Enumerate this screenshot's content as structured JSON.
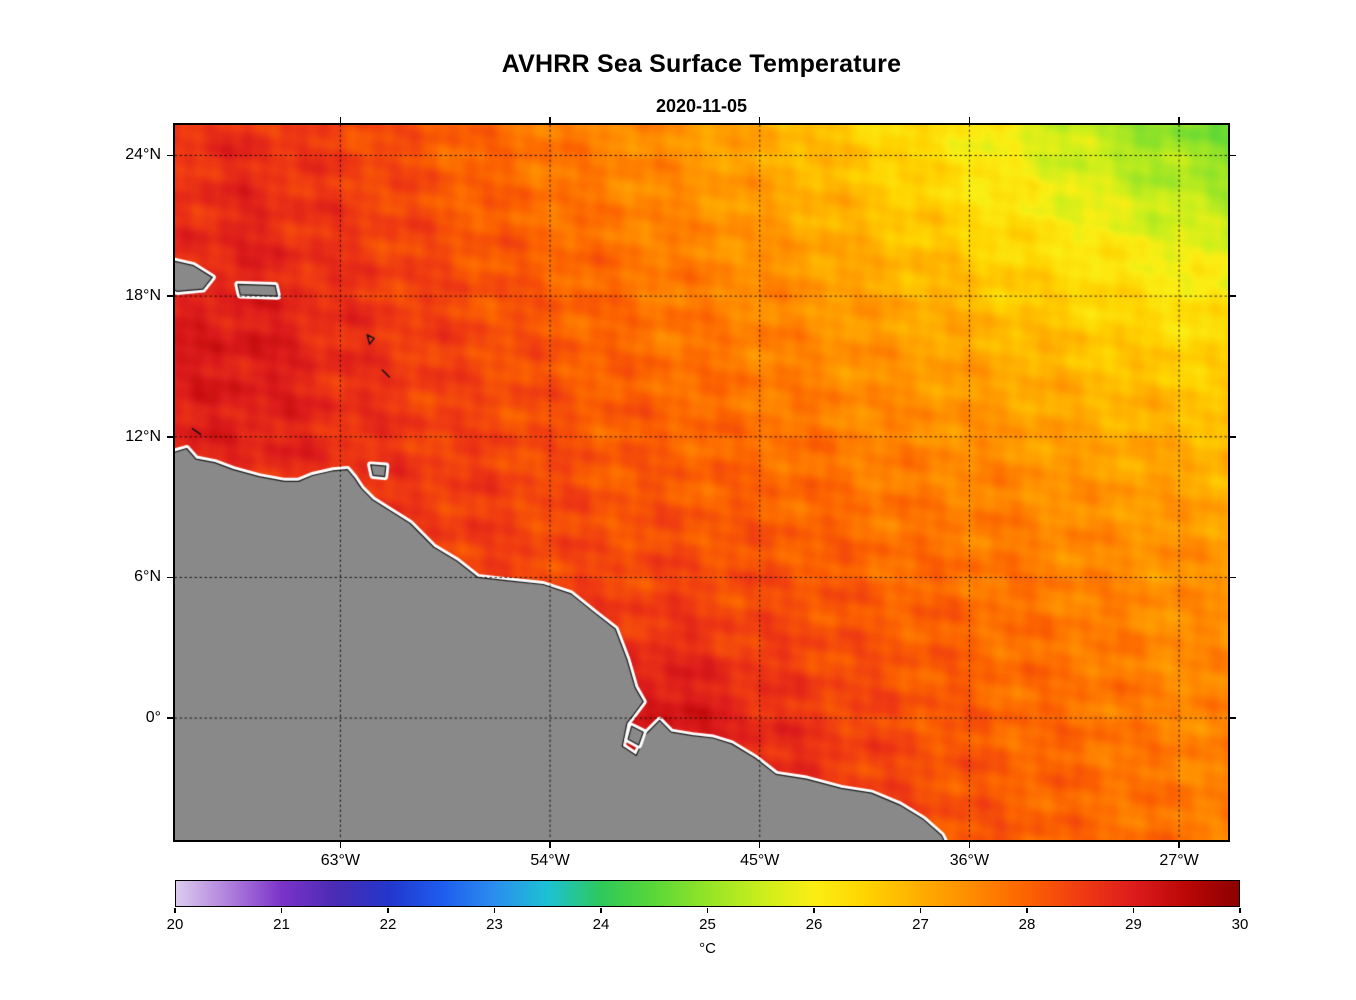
{
  "chart_data": {
    "type": "heatmap",
    "title": "AVHRR Sea Surface Temperature",
    "subtitle": "2020-11-05",
    "grid": "dotted",
    "lon_range": [
      -70.1,
      -24.9
    ],
    "lat_range": [
      -5.2,
      25.3
    ],
    "x_ticks": [
      {
        "value": -63,
        "label": "63°W"
      },
      {
        "value": -54,
        "label": "54°W"
      },
      {
        "value": -45,
        "label": "45°W"
      },
      {
        "value": -36,
        "label": "36°W"
      },
      {
        "value": -27,
        "label": "27°W"
      }
    ],
    "y_ticks": [
      {
        "value": 24,
        "label": "24°N"
      },
      {
        "value": 18,
        "label": "18°N"
      },
      {
        "value": 12,
        "label": "12°N"
      },
      {
        "value": 6,
        "label": "6°N"
      },
      {
        "value": 0,
        "label": "0°"
      }
    ],
    "grid_lon": [
      -70,
      -67,
      -64,
      -61,
      -58,
      -55,
      -52,
      -49,
      -46,
      -43,
      -40,
      -37,
      -34,
      -31,
      -28,
      -25
    ],
    "grid_lat": [
      25,
      22,
      19,
      16,
      13,
      10,
      7,
      4,
      1,
      -2,
      -5
    ],
    "sst": [
      [
        28.6,
        28.7,
        28.5,
        28.3,
        28.0,
        27.8,
        27.6,
        27.4,
        27.1,
        26.8,
        26.5,
        26.2,
        25.8,
        25.4,
        25.0,
        24.8
      ],
      [
        28.7,
        28.8,
        28.6,
        28.4,
        28.1,
        27.9,
        27.7,
        27.5,
        27.3,
        27.0,
        26.7,
        26.4,
        26.1,
        25.8,
        25.5,
        25.3
      ],
      [
        28.8,
        28.9,
        28.7,
        28.5,
        28.3,
        28.1,
        27.9,
        27.7,
        27.5,
        27.3,
        27.0,
        26.8,
        26.5,
        26.3,
        26.1,
        25.9
      ],
      [
        29.0,
        29.1,
        28.8,
        28.6,
        28.4,
        28.2,
        28.0,
        27.8,
        27.7,
        27.5,
        27.3,
        27.1,
        26.9,
        26.7,
        26.5,
        26.4
      ],
      [
        28.9,
        29.0,
        28.8,
        28.6,
        28.4,
        28.3,
        28.1,
        28.0,
        27.8,
        27.7,
        27.5,
        27.4,
        27.2,
        27.0,
        26.9,
        26.7
      ],
      [
        28.7,
        28.8,
        28.7,
        28.6,
        28.5,
        28.4,
        28.2,
        28.1,
        28.0,
        27.9,
        27.7,
        27.6,
        27.5,
        27.3,
        27.2,
        27.0
      ],
      [
        28.6,
        28.7,
        28.7,
        28.6,
        28.5,
        28.4,
        28.3,
        28.3,
        28.2,
        28.1,
        27.9,
        27.8,
        27.7,
        27.5,
        27.4,
        27.3
      ],
      [
        28.6,
        28.7,
        28.7,
        28.7,
        28.6,
        28.6,
        28.5,
        28.6,
        28.4,
        28.3,
        28.1,
        28.0,
        27.8,
        27.7,
        27.5,
        27.4
      ],
      [
        28.6,
        28.7,
        28.8,
        28.8,
        28.8,
        28.9,
        29.0,
        29.1,
        28.8,
        28.5,
        28.3,
        28.1,
        27.9,
        27.8,
        27.6,
        27.5
      ],
      [
        28.6,
        28.7,
        28.8,
        28.9,
        28.9,
        29.0,
        29.2,
        29.3,
        29.0,
        28.7,
        28.4,
        28.2,
        28.0,
        27.9,
        27.7,
        27.6
      ],
      [
        28.6,
        28.7,
        28.8,
        28.9,
        29.0,
        29.1,
        29.2,
        29.2,
        29.0,
        28.8,
        28.5,
        28.3,
        28.1,
        27.9,
        27.8,
        27.7
      ]
    ],
    "colormap": [
      [
        20.0,
        "#DCCBEE"
      ],
      [
        20.5,
        "#AF7FDC"
      ],
      [
        21.0,
        "#7A33C8"
      ],
      [
        21.5,
        "#4A2BB4"
      ],
      [
        22.0,
        "#2336CC"
      ],
      [
        22.5,
        "#1E5CEE"
      ],
      [
        23.0,
        "#2B8EEE"
      ],
      [
        23.5,
        "#1CC2D2"
      ],
      [
        24.0,
        "#2EC85A"
      ],
      [
        24.5,
        "#5AD738"
      ],
      [
        25.0,
        "#94E428"
      ],
      [
        25.5,
        "#C9EE1C"
      ],
      [
        26.0,
        "#FBEE14"
      ],
      [
        26.5,
        "#FFD300"
      ],
      [
        27.0,
        "#FFAD00"
      ],
      [
        27.5,
        "#FF8A00"
      ],
      [
        28.0,
        "#FC6300"
      ],
      [
        28.5,
        "#F03C12"
      ],
      [
        29.0,
        "#DD1C1C"
      ],
      [
        29.5,
        "#BC0707"
      ],
      [
        30.0,
        "#8C0000"
      ]
    ],
    "colorbar": {
      "min": 20,
      "max": 30,
      "ticks": [
        20,
        21,
        22,
        23,
        24,
        25,
        26,
        27,
        28,
        29,
        30
      ],
      "label": "°C"
    },
    "land_color": "#898989",
    "coast_halo_color": "#FFFFFF",
    "coast_line_color": "#1A1A1A",
    "land_polygons": [
      {
        "name": "south-america",
        "points": [
          [
            -70.6,
            11.2
          ],
          [
            -69.6,
            11.5
          ],
          [
            -69.2,
            11.05
          ],
          [
            -68.4,
            10.9
          ],
          [
            -67.6,
            10.6
          ],
          [
            -66.5,
            10.3
          ],
          [
            -65.4,
            10.1
          ],
          [
            -64.8,
            10.1
          ],
          [
            -64.2,
            10.35
          ],
          [
            -63.3,
            10.55
          ],
          [
            -62.7,
            10.6
          ],
          [
            -62.4,
            10.25
          ],
          [
            -62.1,
            9.8
          ],
          [
            -61.6,
            9.3
          ],
          [
            -60.8,
            8.8
          ],
          [
            -60.0,
            8.3
          ],
          [
            -59.0,
            7.3
          ],
          [
            -58.0,
            6.7
          ],
          [
            -57.1,
            6.0
          ],
          [
            -55.8,
            5.85
          ],
          [
            -54.3,
            5.7
          ],
          [
            -53.1,
            5.3
          ],
          [
            -52.1,
            4.5
          ],
          [
            -51.2,
            3.8
          ],
          [
            -50.7,
            2.5
          ],
          [
            -50.35,
            1.3
          ],
          [
            -50.0,
            0.7
          ],
          [
            -50.45,
            0.1
          ],
          [
            -50.7,
            -0.2
          ],
          [
            -50.9,
            -1.2
          ],
          [
            -50.3,
            -1.6
          ],
          [
            -49.9,
            -0.7
          ],
          [
            -49.3,
            -0.1
          ],
          [
            -48.8,
            -0.6
          ],
          [
            -47.9,
            -0.75
          ],
          [
            -47.0,
            -0.85
          ],
          [
            -46.2,
            -1.1
          ],
          [
            -45.2,
            -1.7
          ],
          [
            -44.3,
            -2.4
          ],
          [
            -43.0,
            -2.6
          ],
          [
            -41.5,
            -3.0
          ],
          [
            -40.2,
            -3.2
          ],
          [
            -39.0,
            -3.7
          ],
          [
            -38.0,
            -4.3
          ],
          [
            -37.2,
            -5.0
          ],
          [
            -36.8,
            -5.8
          ],
          [
            -70.6,
            -5.8
          ]
        ]
      },
      {
        "name": "marajo-island",
        "points": [
          [
            -50.5,
            -0.35
          ],
          [
            -50.0,
            -0.6
          ],
          [
            -50.2,
            -1.15
          ],
          [
            -50.65,
            -0.9
          ]
        ]
      },
      {
        "name": "hispaniola",
        "points": [
          [
            -70.6,
            19.6
          ],
          [
            -69.3,
            19.3
          ],
          [
            -68.5,
            18.8
          ],
          [
            -68.9,
            18.3
          ],
          [
            -70.0,
            18.2
          ],
          [
            -70.6,
            18.5
          ]
        ]
      },
      {
        "name": "puerto-rico",
        "points": [
          [
            -67.4,
            18.5
          ],
          [
            -65.8,
            18.45
          ],
          [
            -65.7,
            18.0
          ],
          [
            -67.3,
            18.05
          ]
        ]
      },
      {
        "name": "trinidad",
        "points": [
          [
            -61.7,
            10.8
          ],
          [
            -61.05,
            10.75
          ],
          [
            -61.1,
            10.3
          ],
          [
            -61.6,
            10.35
          ]
        ]
      }
    ],
    "island_outlines": [
      {
        "name": "guadeloupe",
        "points": [
          [
            -61.85,
            16.35
          ],
          [
            -61.55,
            16.2
          ],
          [
            -61.75,
            15.95
          ],
          [
            -61.85,
            16.35
          ]
        ]
      },
      {
        "name": "martinique",
        "points": [
          [
            -61.2,
            14.85
          ],
          [
            -60.9,
            14.55
          ]
        ]
      },
      {
        "name": "curacao",
        "points": [
          [
            -69.35,
            12.35
          ],
          [
            -69.0,
            12.1
          ]
        ]
      }
    ]
  }
}
